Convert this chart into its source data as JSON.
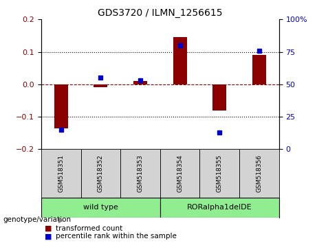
{
  "title": "GDS3720 / ILMN_1256615",
  "samples": [
    "GSM518351",
    "GSM518352",
    "GSM518353",
    "GSM518354",
    "GSM518355",
    "GSM518356"
  ],
  "red_values": [
    -0.135,
    -0.008,
    0.01,
    0.145,
    -0.08,
    0.09
  ],
  "blue_values": [
    15,
    55,
    53,
    80,
    13,
    76
  ],
  "group_labels": [
    "wild type",
    "RORalpha1delDE"
  ],
  "group_ranges": [
    [
      0,
      2
    ],
    [
      3,
      5
    ]
  ],
  "group_color": "#90EE90",
  "group_label_text": "genotype/variation",
  "ylim_left": [
    -0.2,
    0.2
  ],
  "ylim_right": [
    0,
    100
  ],
  "yticks_left": [
    -0.2,
    -0.1,
    0.0,
    0.1,
    0.2
  ],
  "yticks_right": [
    0,
    25,
    50,
    75,
    100
  ],
  "ytick_labels_right": [
    "0",
    "25",
    "50",
    "75",
    "100%"
  ],
  "red_color": "#8B0000",
  "blue_color": "#0000CD",
  "bar_width": 0.35,
  "legend_red": "transformed count",
  "legend_blue": "percentile rank within the sample",
  "dotted_lines": [
    -0.1,
    0.1
  ],
  "sample_box_color": "#D3D3D3",
  "fig_width": 4.61,
  "fig_height": 3.54,
  "dpi": 100
}
